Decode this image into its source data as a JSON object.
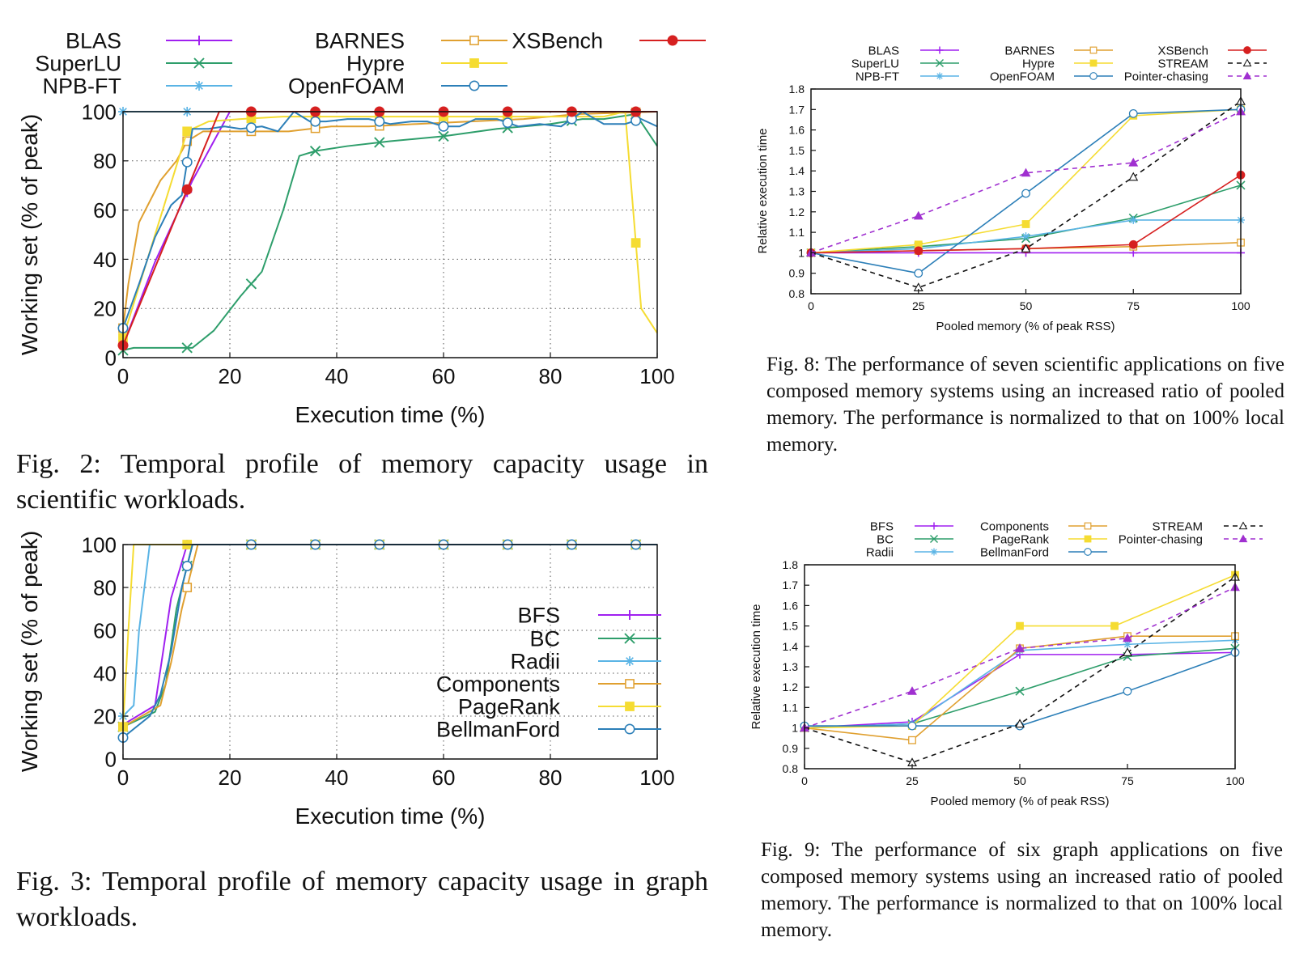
{
  "colors": {
    "purple": "#a020f0",
    "green": "#2e9e6b",
    "skyblue": "#5ab4e5",
    "orange": "#e0a030",
    "yellow": "#f5dc32",
    "blue": "#2c7fb8",
    "red": "#d62020",
    "black": "#111111",
    "violet": "#a030d0"
  },
  "captions": {
    "fig2": "Fig. 2: Temporal profile of memory capacity usage in scientific workloads.",
    "fig3": "Fig. 3: Temporal profile of memory capacity usage in graph workloads.",
    "fig8": "Fig. 8: The performance of seven scientific applications on five composed memory systems using an increased ratio of pooled memory. The performance is normalized to that on 100% local memory.",
    "fig9": "Fig. 9: The performance of six graph applications on five composed memory systems using an increased ratio of pooled memory. The performance is normalized to that on 100% local memory."
  },
  "chart_data": [
    {
      "id": "fig2",
      "type": "line",
      "xlabel": "Execution time (%)",
      "ylabel": "Working set (% of peak)",
      "xlim": [
        0,
        100
      ],
      "ylim": [
        0,
        100
      ],
      "xticks": [
        0,
        20,
        40,
        60,
        80,
        100
      ],
      "yticks": [
        0,
        20,
        40,
        60,
        80,
        100
      ],
      "grid": true,
      "legend": "top",
      "series": [
        {
          "name": "BLAS",
          "color": "purple",
          "marker": "plus",
          "x": [
            0,
            6,
            13,
            20,
            100
          ],
          "y": [
            5,
            39,
            72,
            100,
            100
          ]
        },
        {
          "name": "SuperLU",
          "color": "green",
          "marker": "x",
          "x": [
            0,
            2,
            8,
            13,
            17,
            22,
            26,
            30,
            33,
            36,
            42,
            50,
            60,
            70,
            80,
            86,
            90,
            96,
            100
          ],
          "y": [
            3,
            4,
            4,
            4,
            11,
            25,
            35,
            60,
            82,
            84,
            86,
            88,
            90,
            93,
            95,
            97,
            97,
            99,
            86
          ]
        },
        {
          "name": "NPB-FT",
          "color": "skyblue",
          "marker": "star",
          "x": [
            0,
            100
          ],
          "y": [
            100,
            100
          ]
        },
        {
          "name": "BARNES",
          "color": "orange",
          "marker": "square",
          "x": [
            0,
            1,
            3,
            7,
            10,
            12,
            15,
            20,
            23,
            27,
            31,
            39,
            46,
            55,
            65,
            75,
            85,
            100
          ],
          "y": [
            12,
            30,
            55,
            72,
            80,
            88,
            92,
            92,
            92,
            92,
            92,
            94,
            94,
            95,
            96,
            97,
            99,
            100
          ]
        },
        {
          "name": "Hypre",
          "color": "yellow",
          "marker": "filled-square",
          "x": [
            0,
            12,
            16,
            22,
            30,
            45,
            60,
            75,
            90,
            94,
            97,
            100
          ],
          "y": [
            8,
            92,
            96,
            97,
            98,
            98,
            98,
            98,
            98,
            100,
            20,
            10
          ]
        },
        {
          "name": "OpenFOAM",
          "color": "blue",
          "marker": "circle",
          "x": [
            0,
            3,
            6,
            9,
            11,
            13,
            16,
            19,
            22,
            26,
            29,
            32,
            35,
            38,
            42,
            46,
            50,
            54,
            57,
            60,
            63,
            66,
            70,
            74,
            78,
            82,
            86,
            90,
            94,
            97,
            100
          ],
          "y": [
            12,
            30,
            49,
            62,
            66,
            93,
            93,
            94,
            93,
            94,
            92,
            100,
            96,
            96,
            97,
            97,
            95,
            96,
            96,
            94,
            94,
            97,
            97,
            94,
            95,
            94,
            100,
            95,
            95,
            97,
            94
          ]
        },
        {
          "name": "XSBench",
          "color": "red",
          "marker": "filled-circle",
          "x": [
            0,
            18,
            24,
            47,
            71,
            95,
            100
          ],
          "y": [
            5,
            100,
            100,
            100,
            100,
            100,
            100
          ]
        }
      ]
    },
    {
      "id": "fig3",
      "type": "line",
      "xlabel": "Execution time (%)",
      "ylabel": "Working set (% of peak)",
      "xlim": [
        0,
        100
      ],
      "ylim": [
        0,
        100
      ],
      "xticks": [
        0,
        20,
        40,
        60,
        80,
        100
      ],
      "yticks": [
        0,
        20,
        40,
        60,
        80,
        100
      ],
      "grid": true,
      "legend": "right",
      "series": [
        {
          "name": "BFS",
          "color": "purple",
          "marker": "plus",
          "x": [
            0,
            6,
            9,
            12,
            100
          ],
          "y": [
            16,
            25,
            75,
            100,
            100
          ]
        },
        {
          "name": "BC",
          "color": "green",
          "marker": "x",
          "x": [
            0,
            6,
            8,
            10,
            13,
            100
          ],
          "y": [
            15,
            22,
            35,
            70,
            100,
            100
          ]
        },
        {
          "name": "Radii",
          "color": "skyblue",
          "marker": "star",
          "x": [
            0,
            2,
            3,
            4,
            5,
            100
          ],
          "y": [
            20,
            25,
            60,
            80,
            100,
            100
          ]
        },
        {
          "name": "Components",
          "color": "orange",
          "marker": "square",
          "x": [
            0,
            7,
            9,
            11,
            14,
            100
          ],
          "y": [
            15,
            25,
            45,
            70,
            100,
            100
          ]
        },
        {
          "name": "PageRank",
          "color": "yellow",
          "marker": "filled-square",
          "x": [
            0,
            1,
            2,
            100
          ],
          "y": [
            15,
            60,
            100,
            100
          ]
        },
        {
          "name": "BellmanFord",
          "color": "blue",
          "marker": "circle",
          "x": [
            0,
            5,
            7,
            9,
            11,
            13,
            100
          ],
          "y": [
            10,
            20,
            30,
            50,
            80,
            100,
            100
          ]
        }
      ]
    },
    {
      "id": "fig8",
      "type": "line",
      "xlabel": "Pooled memory (% of peak RSS)",
      "ylabel": "Relative execution time",
      "xlim": [
        0,
        100
      ],
      "ylim": [
        0.8,
        1.8
      ],
      "xticks": [
        0,
        25,
        50,
        75,
        100
      ],
      "yticks": [
        0.8,
        0.9,
        1,
        1.1,
        1.2,
        1.3,
        1.4,
        1.5,
        1.6,
        1.7,
        1.8
      ],
      "legend": "top",
      "series": [
        {
          "name": "BLAS",
          "color": "purple",
          "marker": "plus",
          "x": [
            0,
            25,
            50,
            75,
            100
          ],
          "y": [
            1.0,
            1.0,
            1.0,
            1.0,
            1.0
          ]
        },
        {
          "name": "SuperLU",
          "color": "green",
          "marker": "x",
          "x": [
            0,
            25,
            50,
            75,
            100
          ],
          "y": [
            1.0,
            1.03,
            1.07,
            1.17,
            1.33
          ]
        },
        {
          "name": "NPB-FT",
          "color": "skyblue",
          "marker": "star",
          "x": [
            0,
            25,
            50,
            75,
            100
          ],
          "y": [
            1.0,
            1.02,
            1.08,
            1.16,
            1.16
          ]
        },
        {
          "name": "BARNES",
          "color": "orange",
          "marker": "square",
          "x": [
            0,
            25,
            50,
            75,
            100
          ],
          "y": [
            1.0,
            1.01,
            1.02,
            1.03,
            1.05
          ]
        },
        {
          "name": "Hypre",
          "color": "yellow",
          "marker": "filled-square",
          "x": [
            0,
            25,
            50,
            75,
            100
          ],
          "y": [
            1.0,
            1.04,
            1.14,
            1.67,
            1.7
          ]
        },
        {
          "name": "OpenFOAM",
          "color": "blue",
          "marker": "circle",
          "x": [
            0,
            25,
            50,
            75,
            100
          ],
          "y": [
            1.0,
            0.9,
            1.29,
            1.68,
            1.7
          ]
        },
        {
          "name": "XSBench",
          "color": "red",
          "marker": "filled-circle",
          "x": [
            0,
            25,
            50,
            75,
            100
          ],
          "y": [
            1.0,
            1.01,
            1.02,
            1.04,
            1.38
          ]
        },
        {
          "name": "STREAM",
          "color": "black",
          "marker": "triangle",
          "dashed": true,
          "x": [
            0,
            25,
            50,
            75,
            100
          ],
          "y": [
            1.0,
            0.83,
            1.02,
            1.37,
            1.74
          ]
        },
        {
          "name": "Pointer-chasing",
          "color": "violet",
          "marker": "filled-triangle",
          "dashed": true,
          "x": [
            0,
            25,
            50,
            75,
            100
          ],
          "y": [
            1.0,
            1.18,
            1.39,
            1.44,
            1.69
          ]
        }
      ]
    },
    {
      "id": "fig9",
      "type": "line",
      "xlabel": "Pooled memory (% of peak RSS)",
      "ylabel": "Relative execution time",
      "xlim": [
        0,
        100
      ],
      "ylim": [
        0.8,
        1.8
      ],
      "xticks": [
        0,
        25,
        50,
        75,
        100
      ],
      "yticks": [
        0.8,
        0.9,
        1,
        1.1,
        1.2,
        1.3,
        1.4,
        1.5,
        1.6,
        1.7,
        1.8
      ],
      "legend": "top",
      "series": [
        {
          "name": "BFS",
          "color": "purple",
          "marker": "plus",
          "x": [
            0,
            25,
            50,
            75,
            100
          ],
          "y": [
            1.0,
            1.03,
            1.36,
            1.36,
            1.37
          ]
        },
        {
          "name": "BC",
          "color": "green",
          "marker": "x",
          "x": [
            0,
            25,
            50,
            75,
            100
          ],
          "y": [
            1.0,
            1.02,
            1.18,
            1.35,
            1.39
          ]
        },
        {
          "name": "Radii",
          "color": "skyblue",
          "marker": "star",
          "x": [
            0,
            25,
            50,
            75,
            100
          ],
          "y": [
            1.0,
            1.02,
            1.38,
            1.41,
            1.43
          ]
        },
        {
          "name": "Components",
          "color": "orange",
          "marker": "square",
          "x": [
            0,
            25,
            50,
            75,
            100
          ],
          "y": [
            1.0,
            0.94,
            1.39,
            1.45,
            1.45
          ]
        },
        {
          "name": "PageRank",
          "color": "yellow",
          "marker": "filled-square",
          "x": [
            0,
            25,
            50,
            72,
            100
          ],
          "y": [
            1.0,
            1.01,
            1.5,
            1.5,
            1.75
          ]
        },
        {
          "name": "BellmanFord",
          "color": "blue",
          "marker": "circle",
          "x": [
            0,
            25,
            50,
            75,
            100
          ],
          "y": [
            1.01,
            1.01,
            1.01,
            1.18,
            1.37
          ]
        },
        {
          "name": "STREAM",
          "color": "black",
          "marker": "triangle",
          "dashed": true,
          "x": [
            0,
            25,
            50,
            75,
            100
          ],
          "y": [
            1.0,
            0.83,
            1.02,
            1.37,
            1.74
          ]
        },
        {
          "name": "Pointer-chasing",
          "color": "violet",
          "marker": "filled-triangle",
          "dashed": true,
          "x": [
            0,
            25,
            50,
            75,
            100
          ],
          "y": [
            1.0,
            1.18,
            1.39,
            1.44,
            1.69
          ]
        }
      ]
    }
  ]
}
